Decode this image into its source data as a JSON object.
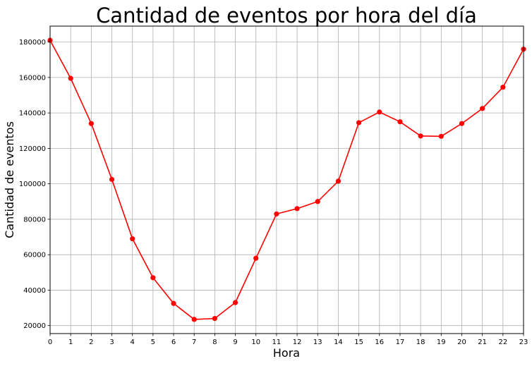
{
  "chart_data": {
    "type": "line",
    "title": "Cantidad de eventos por hora del día",
    "xlabel": "Hora",
    "ylabel": "Cantidad de eventos",
    "x": [
      0,
      1,
      2,
      3,
      4,
      5,
      6,
      7,
      8,
      9,
      10,
      11,
      12,
      13,
      14,
      15,
      16,
      17,
      18,
      19,
      20,
      21,
      22,
      23
    ],
    "x_tick_labels": [
      "0",
      "1",
      "2",
      "3",
      "4",
      "5",
      "6",
      "7",
      "8",
      "9",
      "10",
      "11",
      "12",
      "13",
      "14",
      "15",
      "16",
      "17",
      "18",
      "19",
      "20",
      "21",
      "22",
      "23"
    ],
    "y_ticks": [
      20000,
      40000,
      60000,
      80000,
      100000,
      120000,
      140000,
      160000,
      180000
    ],
    "y_tick_labels": [
      "20000",
      "40000",
      "60000",
      "80000",
      "100000",
      "120000",
      "140000",
      "160000",
      "180000"
    ],
    "xlim": [
      0,
      23
    ],
    "ylim": [
      15500,
      189000
    ],
    "grid": true,
    "series": [
      {
        "color": "#ff0000",
        "marker": "circle",
        "values": [
          181000,
          159500,
          134000,
          102500,
          69000,
          47000,
          32500,
          23500,
          24000,
          33000,
          58000,
          83000,
          86000,
          90000,
          101500,
          134500,
          140500,
          135000,
          127000,
          126800,
          134000,
          142500,
          154500,
          176000
        ]
      }
    ]
  }
}
